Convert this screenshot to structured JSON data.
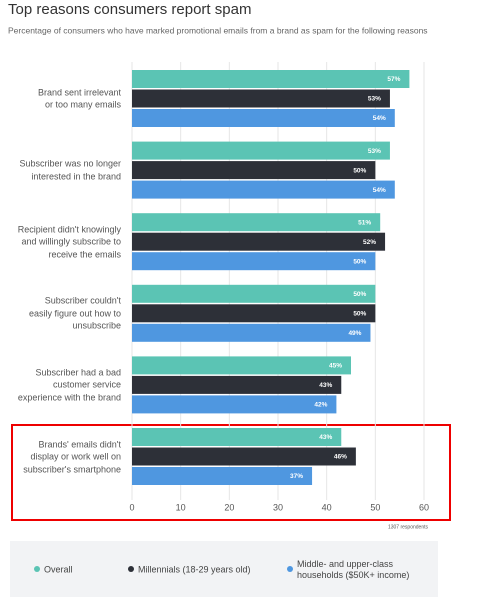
{
  "chart_data": {
    "type": "bar",
    "orientation": "horizontal",
    "title": "Top reasons consumers report spam",
    "subtitle": "Percentage of consumers who have marked promotional emails from a brand as spam for the following reasons",
    "categories": [
      "Brand sent irrelevant\nor too many emails",
      "Subscriber was no longer\ninterested in the brand",
      "Recipient didn't knowingly\nand willingly subscribe to\nreceive the emails",
      "Subscriber couldn't\neasily figure out how to\nunsubscribe",
      "Subscriber had a bad\ncustomer service\nexperience with the brand",
      "Brands' emails didn't\ndisplay or work well on\nsubscriber's smartphone"
    ],
    "series": [
      {
        "name": "Overall",
        "color": "#5bc4b4",
        "values": [
          57,
          53,
          51,
          50,
          45,
          43
        ],
        "value_labels": [
          "57%",
          "53%",
          "51%",
          "50%",
          "45%",
          "43%"
        ]
      },
      {
        "name": "Millennials (18-29 years old)",
        "color": "#2d3038",
        "values": [
          53,
          50,
          52,
          50,
          43,
          46
        ],
        "value_labels": [
          "53%",
          "50%",
          "52%",
          "50%",
          "43%",
          "46%"
        ]
      },
      {
        "name": "Middle- and upper-class\nhouseholds ($50K+ income)",
        "color": "#4f97e0",
        "values": [
          54,
          54,
          50,
          49,
          42,
          37
        ],
        "value_labels": [
          "54%",
          "54%",
          "50%",
          "49%",
          "42%",
          "37%"
        ]
      }
    ],
    "xlim": [
      0,
      60
    ],
    "xticks": [
      0,
      10,
      20,
      30,
      40,
      50,
      60
    ],
    "grid": true,
    "note": "1307 respondents"
  }
}
